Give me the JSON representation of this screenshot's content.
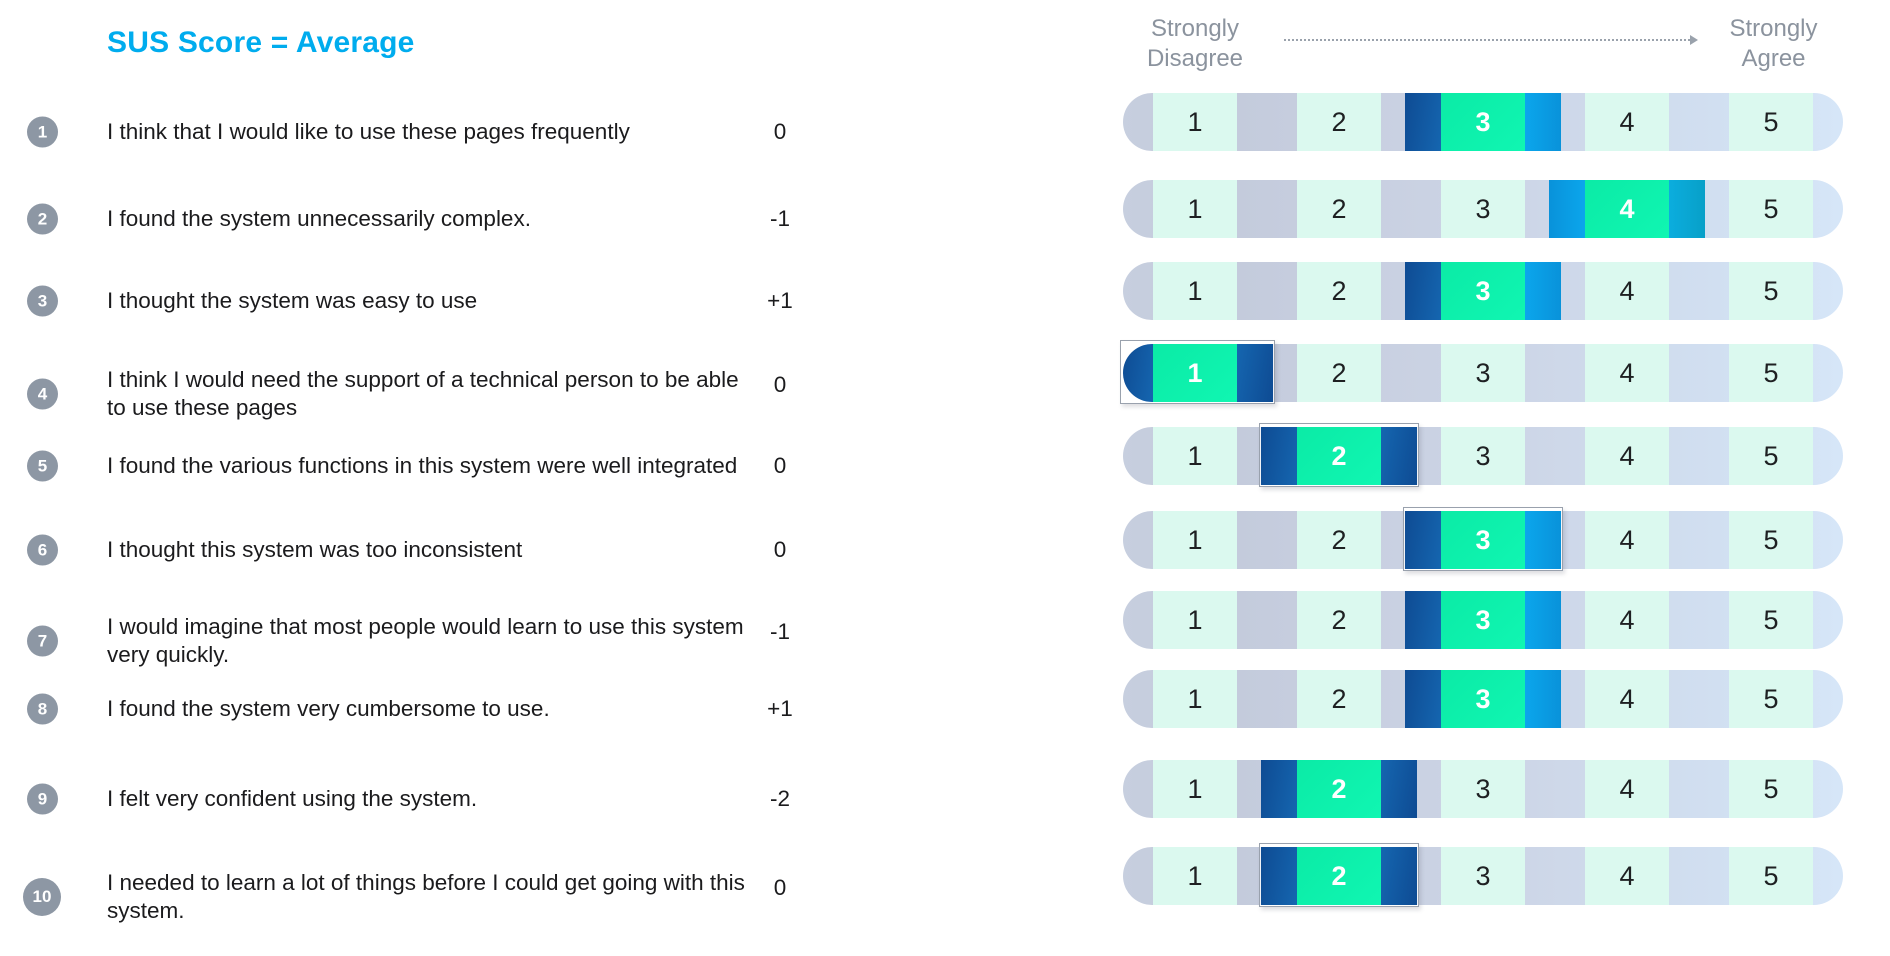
{
  "title": "SUS Score = Average",
  "scale_header": {
    "left_label": "Strongly\nDisagree",
    "right_label": "Strongly\nAgree",
    "arrow_icon": "dotted-right-arrow"
  },
  "scale_values": [
    "1",
    "2",
    "3",
    "4",
    "5"
  ],
  "questions": [
    {
      "num": "1",
      "text": "I think that I would like to use these pages frequently",
      "score": "0",
      "selected": 3,
      "left_flank": "navy",
      "right_flank": "blue",
      "outlined": false
    },
    {
      "num": "2",
      "text": "I found the system unnecessarily complex.",
      "score": "-1",
      "selected": 4,
      "left_flank": "blue",
      "right_flank": "teal",
      "outlined": false
    },
    {
      "num": "3",
      "text": "I thought the system was easy to use",
      "score": "+1",
      "selected": 3,
      "left_flank": "navy",
      "right_flank": "blue",
      "outlined": false
    },
    {
      "num": "4",
      "text": "I think I would need the support of a technical person to be able to use these pages",
      "score": "0",
      "selected": 1,
      "left_flank": "navy",
      "right_flank": "navy",
      "outlined": true
    },
    {
      "num": "5",
      "text": "I found the various functions in this system were well integrated",
      "score": "0",
      "selected": 2,
      "left_flank": "navy",
      "right_flank": "navy",
      "outlined": true
    },
    {
      "num": "6",
      "text": "I thought this system was too inconsistent",
      "score": "0",
      "selected": 3,
      "left_flank": "navy",
      "right_flank": "blue",
      "outlined": true
    },
    {
      "num": "7",
      "text": "I would imagine that most people would learn to use this system very quickly.",
      "score": "-1",
      "selected": 3,
      "left_flank": "navy",
      "right_flank": "blue",
      "outlined": false
    },
    {
      "num": "8",
      "text": "I found the system very cumbersome to use.",
      "score": "+1",
      "selected": 3,
      "left_flank": "navy",
      "right_flank": "blue",
      "outlined": false
    },
    {
      "num": "9",
      "text": "I felt very confident using the system.",
      "score": "-2",
      "selected": 2,
      "left_flank": "navy",
      "right_flank": "navy",
      "outlined": false
    },
    {
      "num": "10",
      "text": "I needed to learn a lot of things before I could get going with this system.",
      "score": "0",
      "selected": 2,
      "left_flank": "navy",
      "right_flank": "navy",
      "outlined": true
    }
  ],
  "colors": {
    "accent_title": "#00acee",
    "selected_green": "#0df0ae",
    "flank_navy": "#0e4b93",
    "flank_bright_blue": "#0a9ee4",
    "flank_teal_blue": "#09a7d3",
    "cell_mint": "#dbf9ef",
    "pill_gray_blue": "#c7cfdf",
    "pill_light_blue": "#d2e1f3",
    "badge_gray": "#8d97a4",
    "header_gray": "#8b939e"
  },
  "chart_data": {
    "type": "table",
    "title": "SUS Score = Average",
    "x_axis": {
      "left_label": "Strongly Disagree",
      "right_label": "Strongly Agree",
      "scale": [
        1,
        2,
        3,
        4,
        5
      ]
    },
    "categories": [
      "I think that I would like to use these pages frequently",
      "I found the system unnecessarily complex.",
      "I thought the system was easy to use",
      "I think I would need the support of a technical person to be able to use these pages",
      "I found the various functions in this system were well integrated",
      "I thought this system was too inconsistent",
      "I would imagine that most people would learn to use this system very quickly.",
      "I found the system very cumbersome to use.",
      "I felt very confident using the system.",
      "I needed to learn a lot of things before I could get going with this system."
    ],
    "series": [
      {
        "name": "selected_rating",
        "values": [
          3,
          4,
          3,
          1,
          2,
          3,
          3,
          3,
          2,
          2
        ]
      },
      {
        "name": "score_contribution",
        "values": [
          0,
          -1,
          1,
          0,
          0,
          0,
          -1,
          1,
          -2,
          0
        ]
      }
    ],
    "legend": "off",
    "grid": "off"
  }
}
